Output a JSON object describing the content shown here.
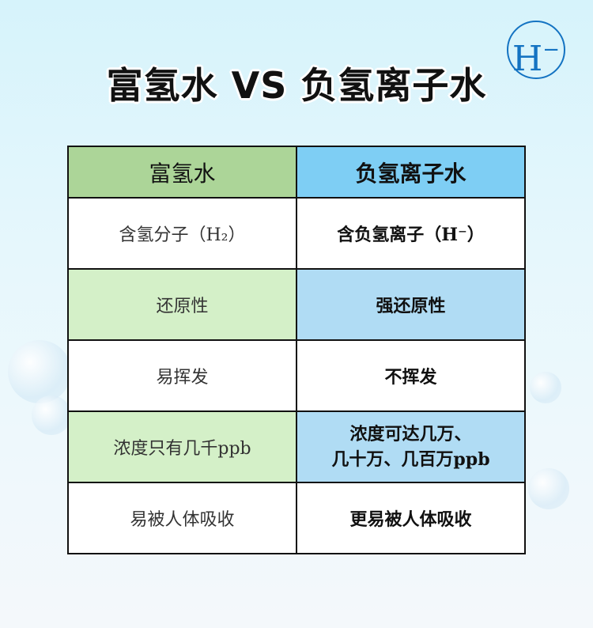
{
  "title": "富氢水 VS 负氢离子水",
  "logo": {
    "letter": "H",
    "sup": "−"
  },
  "colors": {
    "header_left": "#acd598",
    "header_right": "#7ecef4",
    "row_left": "#d4f0c8",
    "row_right": "#b0dcf4",
    "logo": "#1473c2"
  },
  "table": {
    "headers": [
      "富氢水",
      "负氢离子水"
    ],
    "rows": [
      [
        "含氢分子（H₂）",
        "含负氢离子（H⁻）"
      ],
      [
        "还原性",
        "强还原性"
      ],
      [
        "易挥发",
        "不挥发"
      ],
      [
        "浓度只有几千ppb",
        "浓度可达几万、\n几十万、几百万ppb"
      ],
      [
        "易被人体吸收",
        "更易被人体吸收"
      ]
    ]
  }
}
